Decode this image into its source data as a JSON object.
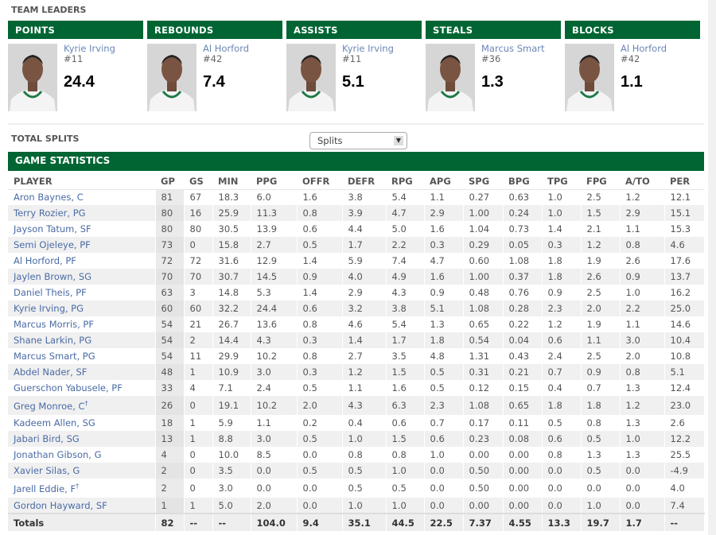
{
  "team_leaders": {
    "title": "TEAM LEADERS",
    "cards": [
      {
        "category": "POINTS",
        "player": "Kyrie Irving",
        "number": "#11",
        "value": "24.4"
      },
      {
        "category": "REBOUNDS",
        "player": "Al Horford",
        "number": "#42",
        "value": "7.4"
      },
      {
        "category": "ASSISTS",
        "player": "Kyrie Irving",
        "number": "#11",
        "value": "5.1"
      },
      {
        "category": "STEALS",
        "player": "Marcus Smart",
        "number": "#36",
        "value": "1.3"
      },
      {
        "category": "BLOCKS",
        "player": "Al Horford",
        "number": "#42",
        "value": "1.1"
      }
    ]
  },
  "splits": {
    "title": "TOTAL SPLITS",
    "selected": "Splits"
  },
  "game_statistics": {
    "title": "GAME STATISTICS",
    "columns": [
      "PLAYER",
      "GP",
      "GS",
      "MIN",
      "PPG",
      "OFFR",
      "DEFR",
      "RPG",
      "APG",
      "SPG",
      "BPG",
      "TPG",
      "FPG",
      "A/TO",
      "PER"
    ],
    "rows": [
      {
        "player": "Aron Baynes, C",
        "mark": "",
        "stats": [
          "81",
          "67",
          "18.3",
          "6.0",
          "1.6",
          "3.8",
          "5.4",
          "1.1",
          "0.27",
          "0.63",
          "1.0",
          "2.5",
          "1.2",
          "12.1"
        ]
      },
      {
        "player": "Terry Rozier, PG",
        "mark": "",
        "stats": [
          "80",
          "16",
          "25.9",
          "11.3",
          "0.8",
          "3.9",
          "4.7",
          "2.9",
          "1.00",
          "0.24",
          "1.0",
          "1.5",
          "2.9",
          "15.1"
        ]
      },
      {
        "player": "Jayson Tatum, SF",
        "mark": "",
        "stats": [
          "80",
          "80",
          "30.5",
          "13.9",
          "0.6",
          "4.4",
          "5.0",
          "1.6",
          "1.04",
          "0.73",
          "1.4",
          "2.1",
          "1.1",
          "15.3"
        ]
      },
      {
        "player": "Semi Ojeleye, PF",
        "mark": "",
        "stats": [
          "73",
          "0",
          "15.8",
          "2.7",
          "0.5",
          "1.7",
          "2.2",
          "0.3",
          "0.29",
          "0.05",
          "0.3",
          "1.2",
          "0.8",
          "4.6"
        ]
      },
      {
        "player": "Al Horford, PF",
        "mark": "",
        "stats": [
          "72",
          "72",
          "31.6",
          "12.9",
          "1.4",
          "5.9",
          "7.4",
          "4.7",
          "0.60",
          "1.08",
          "1.8",
          "1.9",
          "2.6",
          "17.6"
        ]
      },
      {
        "player": "Jaylen Brown, SG",
        "mark": "",
        "stats": [
          "70",
          "70",
          "30.7",
          "14.5",
          "0.9",
          "4.0",
          "4.9",
          "1.6",
          "1.00",
          "0.37",
          "1.8",
          "2.6",
          "0.9",
          "13.7"
        ]
      },
      {
        "player": "Daniel Theis, PF",
        "mark": "",
        "stats": [
          "63",
          "3",
          "14.8",
          "5.3",
          "1.4",
          "2.9",
          "4.3",
          "0.9",
          "0.48",
          "0.76",
          "0.9",
          "2.5",
          "1.0",
          "16.2"
        ]
      },
      {
        "player": "Kyrie Irving, PG",
        "mark": "",
        "stats": [
          "60",
          "60",
          "32.2",
          "24.4",
          "0.6",
          "3.2",
          "3.8",
          "5.1",
          "1.08",
          "0.28",
          "2.3",
          "2.0",
          "2.2",
          "25.0"
        ]
      },
      {
        "player": "Marcus Morris, PF",
        "mark": "",
        "stats": [
          "54",
          "21",
          "26.7",
          "13.6",
          "0.8",
          "4.6",
          "5.4",
          "1.3",
          "0.65",
          "0.22",
          "1.2",
          "1.9",
          "1.1",
          "14.6"
        ]
      },
      {
        "player": "Shane Larkin, PG",
        "mark": "",
        "stats": [
          "54",
          "2",
          "14.4",
          "4.3",
          "0.3",
          "1.4",
          "1.7",
          "1.8",
          "0.54",
          "0.04",
          "0.6",
          "1.1",
          "3.0",
          "10.4"
        ]
      },
      {
        "player": "Marcus Smart, PG",
        "mark": "",
        "stats": [
          "54",
          "11",
          "29.9",
          "10.2",
          "0.8",
          "2.7",
          "3.5",
          "4.8",
          "1.31",
          "0.43",
          "2.4",
          "2.5",
          "2.0",
          "10.8"
        ]
      },
      {
        "player": "Abdel Nader, SF",
        "mark": "",
        "stats": [
          "48",
          "1",
          "10.9",
          "3.0",
          "0.3",
          "1.2",
          "1.5",
          "0.5",
          "0.31",
          "0.21",
          "0.7",
          "0.9",
          "0.8",
          "5.1"
        ]
      },
      {
        "player": "Guerschon Yabusele, PF",
        "mark": "",
        "stats": [
          "33",
          "4",
          "7.1",
          "2.4",
          "0.5",
          "1.1",
          "1.6",
          "0.5",
          "0.12",
          "0.15",
          "0.4",
          "0.7",
          "1.3",
          "12.4"
        ]
      },
      {
        "player": "Greg Monroe, C",
        "mark": "†",
        "stats": [
          "26",
          "0",
          "19.1",
          "10.2",
          "2.0",
          "4.3",
          "6.3",
          "2.3",
          "1.08",
          "0.65",
          "1.8",
          "1.8",
          "1.2",
          "23.0"
        ]
      },
      {
        "player": "Kadeem Allen, SG",
        "mark": "",
        "stats": [
          "18",
          "1",
          "5.9",
          "1.1",
          "0.2",
          "0.4",
          "0.6",
          "0.7",
          "0.17",
          "0.11",
          "0.5",
          "0.8",
          "1.3",
          "2.6"
        ]
      },
      {
        "player": "Jabari Bird, SG",
        "mark": "",
        "stats": [
          "13",
          "1",
          "8.8",
          "3.0",
          "0.5",
          "1.0",
          "1.5",
          "0.6",
          "0.23",
          "0.08",
          "0.6",
          "0.5",
          "1.0",
          "12.2"
        ]
      },
      {
        "player": "Jonathan Gibson, G",
        "mark": "",
        "stats": [
          "4",
          "0",
          "10.0",
          "8.5",
          "0.0",
          "0.8",
          "0.8",
          "1.0",
          "0.00",
          "0.00",
          "0.8",
          "1.3",
          "1.3",
          "25.5"
        ]
      },
      {
        "player": "Xavier Silas, G",
        "mark": "",
        "stats": [
          "2",
          "0",
          "3.5",
          "0.0",
          "0.5",
          "0.5",
          "1.0",
          "0.0",
          "0.50",
          "0.00",
          "0.0",
          "0.5",
          "0.0",
          "-4.9"
        ]
      },
      {
        "player": "Jarell Eddie, F",
        "mark": "†",
        "stats": [
          "2",
          "0",
          "3.0",
          "0.0",
          "0.0",
          "0.5",
          "0.5",
          "0.0",
          "0.50",
          "0.00",
          "0.0",
          "0.0",
          "0.0",
          "4.0"
        ]
      },
      {
        "player": "Gordon Hayward, SF",
        "mark": "",
        "stats": [
          "1",
          "1",
          "5.0",
          "2.0",
          "0.0",
          "1.0",
          "1.0",
          "0.0",
          "0.00",
          "0.00",
          "0.0",
          "1.0",
          "0.0",
          "7.4"
        ]
      }
    ],
    "totals": {
      "label": "Totals",
      "stats": [
        "82",
        "--",
        "--",
        "104.0",
        "9.4",
        "35.1",
        "44.5",
        "22.5",
        "7.37",
        "4.55",
        "13.3",
        "19.7",
        "1.7",
        "--"
      ]
    }
  },
  "colors": {
    "header_green": "#006532",
    "link_blue": "#4a6aa5"
  }
}
